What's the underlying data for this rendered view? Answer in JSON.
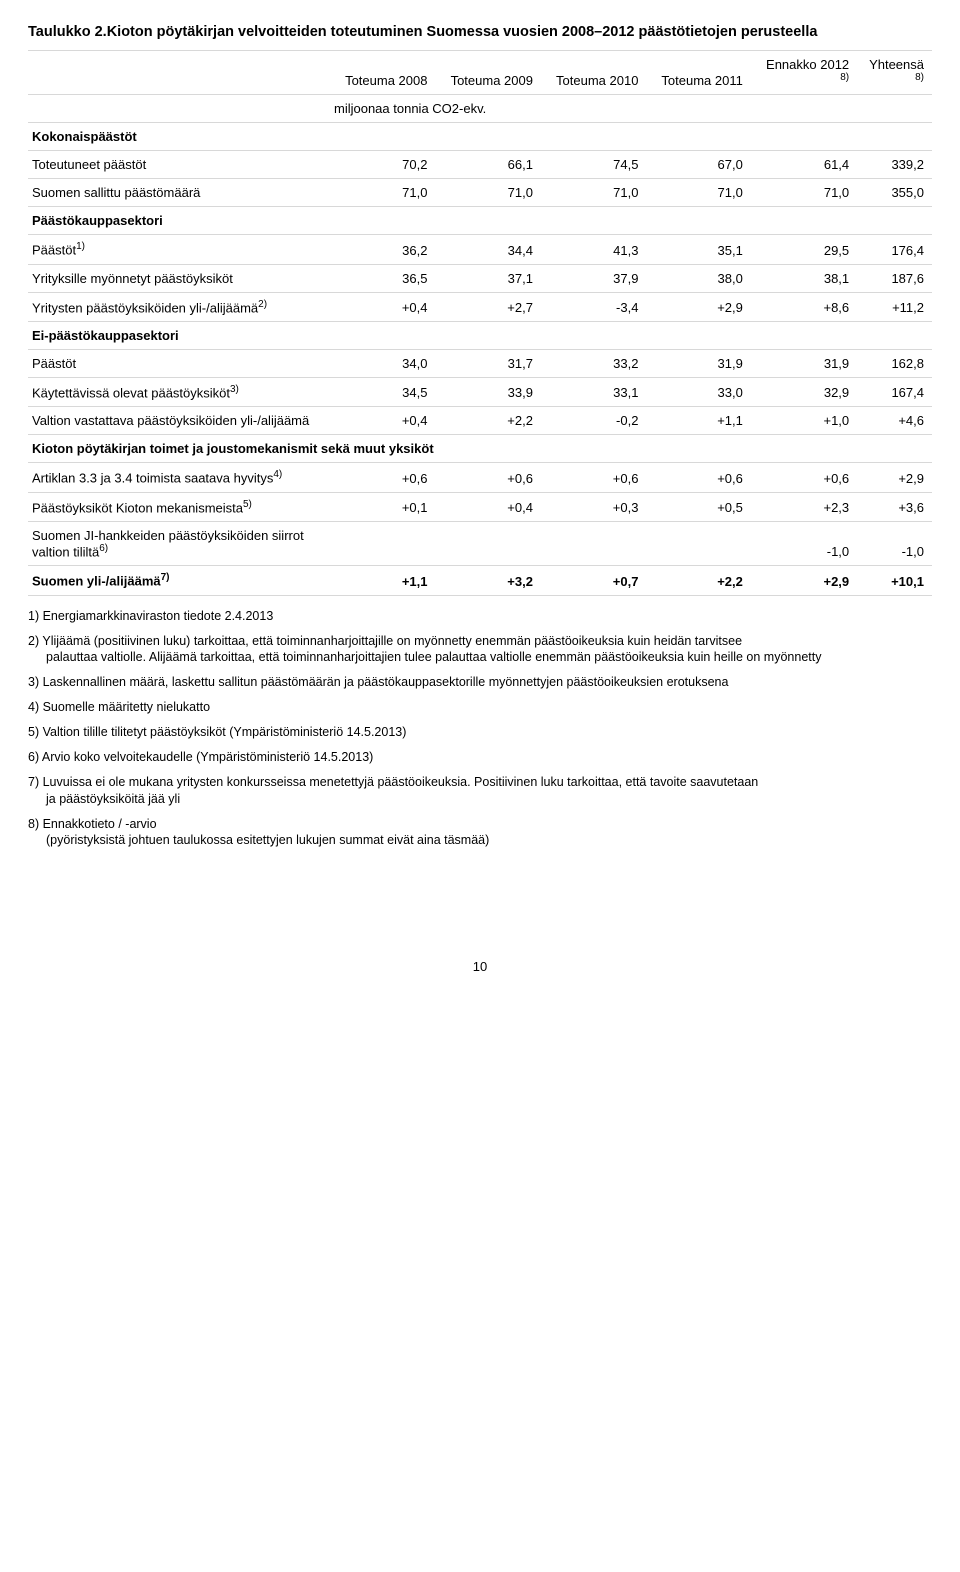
{
  "title_prefix": "Taulukko 2.",
  "title_rest": "Kioton pöytäkirjan velvoitteiden toteutuminen Suomessa vuosien 2008–2012 päästötietojen perusteella",
  "columns": [
    "",
    "Toteuma 2008",
    "Toteuma 2009",
    "Toteuma 2010",
    "Toteuma 2011",
    "Ennakko 2012",
    "Yhteensä"
  ],
  "col_supers": [
    "",
    "",
    "",
    "",
    "",
    "8)",
    "8)"
  ],
  "unit_row": "miljoonaa tonnia CO2-ekv.",
  "section_kokonais": "Kokonaispäästöt",
  "rows": {
    "r1": {
      "label": "Toteutuneet päästöt",
      "sup": "",
      "vals": [
        "70,2",
        "66,1",
        "74,5",
        "67,0",
        "61,4",
        "339,2"
      ]
    },
    "r2": {
      "label": "Suomen sallittu päästömäärä",
      "sup": "",
      "vals": [
        "71,0",
        "71,0",
        "71,0",
        "71,0",
        "71,0",
        "355,0"
      ]
    },
    "sec_pks": "Päästökauppasektori",
    "r3": {
      "label": "Päästöt",
      "sup": "1)",
      "vals": [
        "36,2",
        "34,4",
        "41,3",
        "35,1",
        "29,5",
        "176,4"
      ]
    },
    "r4": {
      "label": "Yrityksille myönnetyt päästöyksiköt",
      "sup": "",
      "vals": [
        "36,5",
        "37,1",
        "37,9",
        "38,0",
        "38,1",
        "187,6"
      ]
    },
    "r5": {
      "label": "Yritysten päästöyksiköiden yli-/alijäämä",
      "sup": "2)",
      "vals": [
        "+0,4",
        "+2,7",
        "-3,4",
        "+2,9",
        "+8,6",
        "+11,2"
      ]
    },
    "sec_eipks": "Ei-päästökauppasektori",
    "r6": {
      "label": "Päästöt",
      "sup": "",
      "vals": [
        "34,0",
        "31,7",
        "33,2",
        "31,9",
        "31,9",
        "162,8"
      ]
    },
    "r7": {
      "label": "Käytettävissä olevat päästöyksiköt",
      "sup": "3)",
      "vals": [
        "34,5",
        "33,9",
        "33,1",
        "33,0",
        "32,9",
        "167,4"
      ]
    },
    "r8": {
      "label": "Valtion vastattava päästöyksiköiden yli-/alijäämä",
      "sup": "",
      "vals": [
        "+0,4",
        "+2,2",
        "-0,2",
        "+1,1",
        "+1,0",
        "+4,6"
      ]
    },
    "sec_kioto": "Kioton pöytäkirjan toimet ja joustomekanismit sekä muut yksiköt",
    "r9": {
      "label": "Artiklan 3.3 ja 3.4 toimista saatava hyvitys",
      "sup": "4)",
      "vals": [
        "+0,6",
        "+0,6",
        "+0,6",
        "+0,6",
        "+0,6",
        "+2,9"
      ]
    },
    "r10": {
      "label": "Päästöyksiköt Kioton mekanismeista",
      "sup": "5)",
      "vals": [
        "+0,1",
        "+0,4",
        "+0,3",
        "+0,5",
        "+2,3",
        "+3,6"
      ]
    },
    "r11": {
      "label": "Suomen JI-hankkeiden päästöyksiköiden siirrot valtion tililtä",
      "sup": "6)",
      "vals": [
        "",
        "",
        "",
        "",
        "-1,0",
        "-1,0"
      ]
    },
    "r12": {
      "label": "Suomen yli-/alijäämä",
      "sup": "7)",
      "vals": [
        "+1,1",
        "+3,2",
        "+0,7",
        "+2,2",
        "+2,9",
        "+10,1"
      ]
    }
  },
  "footnotes": {
    "f1": "1) Energiamarkkinaviraston tiedote 2.4.2013",
    "f2a": "2) Ylijäämä (positiivinen luku) tarkoittaa, että toiminnanharjoittajille on myönnetty enemmän päästöoikeuksia kuin heidän tarvitsee",
    "f2b": "palauttaa valtiolle. Alijäämä tarkoittaa, että toiminnanharjoittajien tulee palauttaa valtiolle enemmän päästöoikeuksia kuin heille on myönnetty",
    "f3": "3) Laskennallinen määrä, laskettu sallitun päästömäärän ja päästökauppasektorille myönnettyjen päästöoikeuksien erotuksena",
    "f4": "4) Suomelle määritetty nielukatto",
    "f5": "5) Valtion tilille tilitetyt päästöyksiköt (Ympäristöministeriö 14.5.2013)",
    "f6": "6) Arvio koko velvoitekaudelle (Ympäristöministeriö 14.5.2013)",
    "f7a": "7) Luvuissa ei ole mukana yritysten konkursseissa menetettyjä päästöoikeuksia. Positiivinen luku tarkoittaa, että tavoite saavutetaan",
    "f7b": "ja päästöyksiköitä jää yli",
    "f8a": "8) Ennakkotieto / -arvio",
    "f8b": "(pyöristyksistä johtuen taulukossa esitettyjen lukujen summat eivät aina täsmää)"
  },
  "page_number": "10"
}
